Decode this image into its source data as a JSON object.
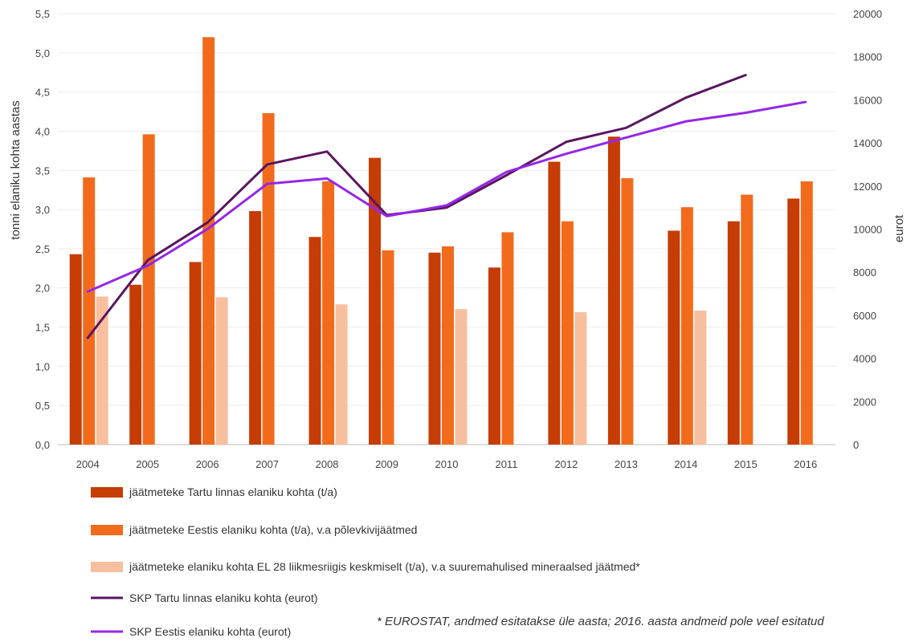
{
  "chart_data": {
    "type": "bar",
    "categories": [
      "2004",
      "2005",
      "2006",
      "2007",
      "2008",
      "2009",
      "2010",
      "2011",
      "2012",
      "2013",
      "2014",
      "2015",
      "2016"
    ],
    "ylabel": "tonni elaniku kohta aastas",
    "y2label": "eurot",
    "ylim": [
      0,
      5.5
    ],
    "y2lim": [
      0,
      20000
    ],
    "y_ticks": [
      "0,0",
      "0,5",
      "1,0",
      "1,5",
      "2,0",
      "2,5",
      "3,0",
      "3,5",
      "4,0",
      "4,5",
      "5,0",
      "5,5"
    ],
    "y2_ticks": [
      "0",
      "2000",
      "4000",
      "6000",
      "8000",
      "10000",
      "12000",
      "14000",
      "16000",
      "18000",
      "20000"
    ],
    "grid": true,
    "legend_position": "bottom-left",
    "series": [
      {
        "name": "jäätmeteke Tartu linnas elaniku kohta (t/a)",
        "kind": "bar",
        "axis": "left",
        "color": "#c63c05",
        "values": [
          2.43,
          2.04,
          2.33,
          2.98,
          2.65,
          3.66,
          2.45,
          2.26,
          3.61,
          3.93,
          2.73,
          2.85,
          3.14
        ]
      },
      {
        "name": "jäätmeteke Eestis elaniku kohta (t/a), v.a  põlevkivijäätmed",
        "kind": "bar",
        "axis": "left",
        "color": "#f26b1d",
        "values": [
          3.41,
          3.96,
          5.2,
          4.23,
          3.36,
          2.48,
          2.53,
          2.71,
          2.85,
          3.4,
          3.03,
          3.19,
          3.36
        ]
      },
      {
        "name": "jäätmeteke elaniku kohta EL 28 liikmesriigis keskmiselt (t/a), v.a suuremahulised mineraalsed jäätmed*",
        "kind": "bar",
        "axis": "left",
        "color": "#f8bf9e",
        "values": [
          1.89,
          null,
          1.88,
          null,
          1.79,
          null,
          1.73,
          null,
          1.69,
          null,
          1.71,
          null,
          null
        ]
      },
      {
        "name": "SKP Tartu linnas elaniku kohta (eurot)",
        "kind": "line",
        "axis": "right",
        "color": "#5a1560",
        "values": [
          4950,
          8550,
          10300,
          13000,
          13600,
          10650,
          11000,
          12500,
          14050,
          14700,
          16100,
          17150,
          null
        ]
      },
      {
        "name": "SKP Eestis elaniku kohta (eurot)",
        "kind": "line",
        "axis": "right",
        "color": "#9527e6",
        "values": [
          7100,
          8300,
          10000,
          12100,
          12350,
          10600,
          11100,
          12650,
          13500,
          14250,
          15000,
          15400,
          15900
        ]
      }
    ],
    "footnote": "* EUROSTAT, andmed esitatakse üle aasta; 2016. aasta andmeid pole veel esitatud"
  }
}
